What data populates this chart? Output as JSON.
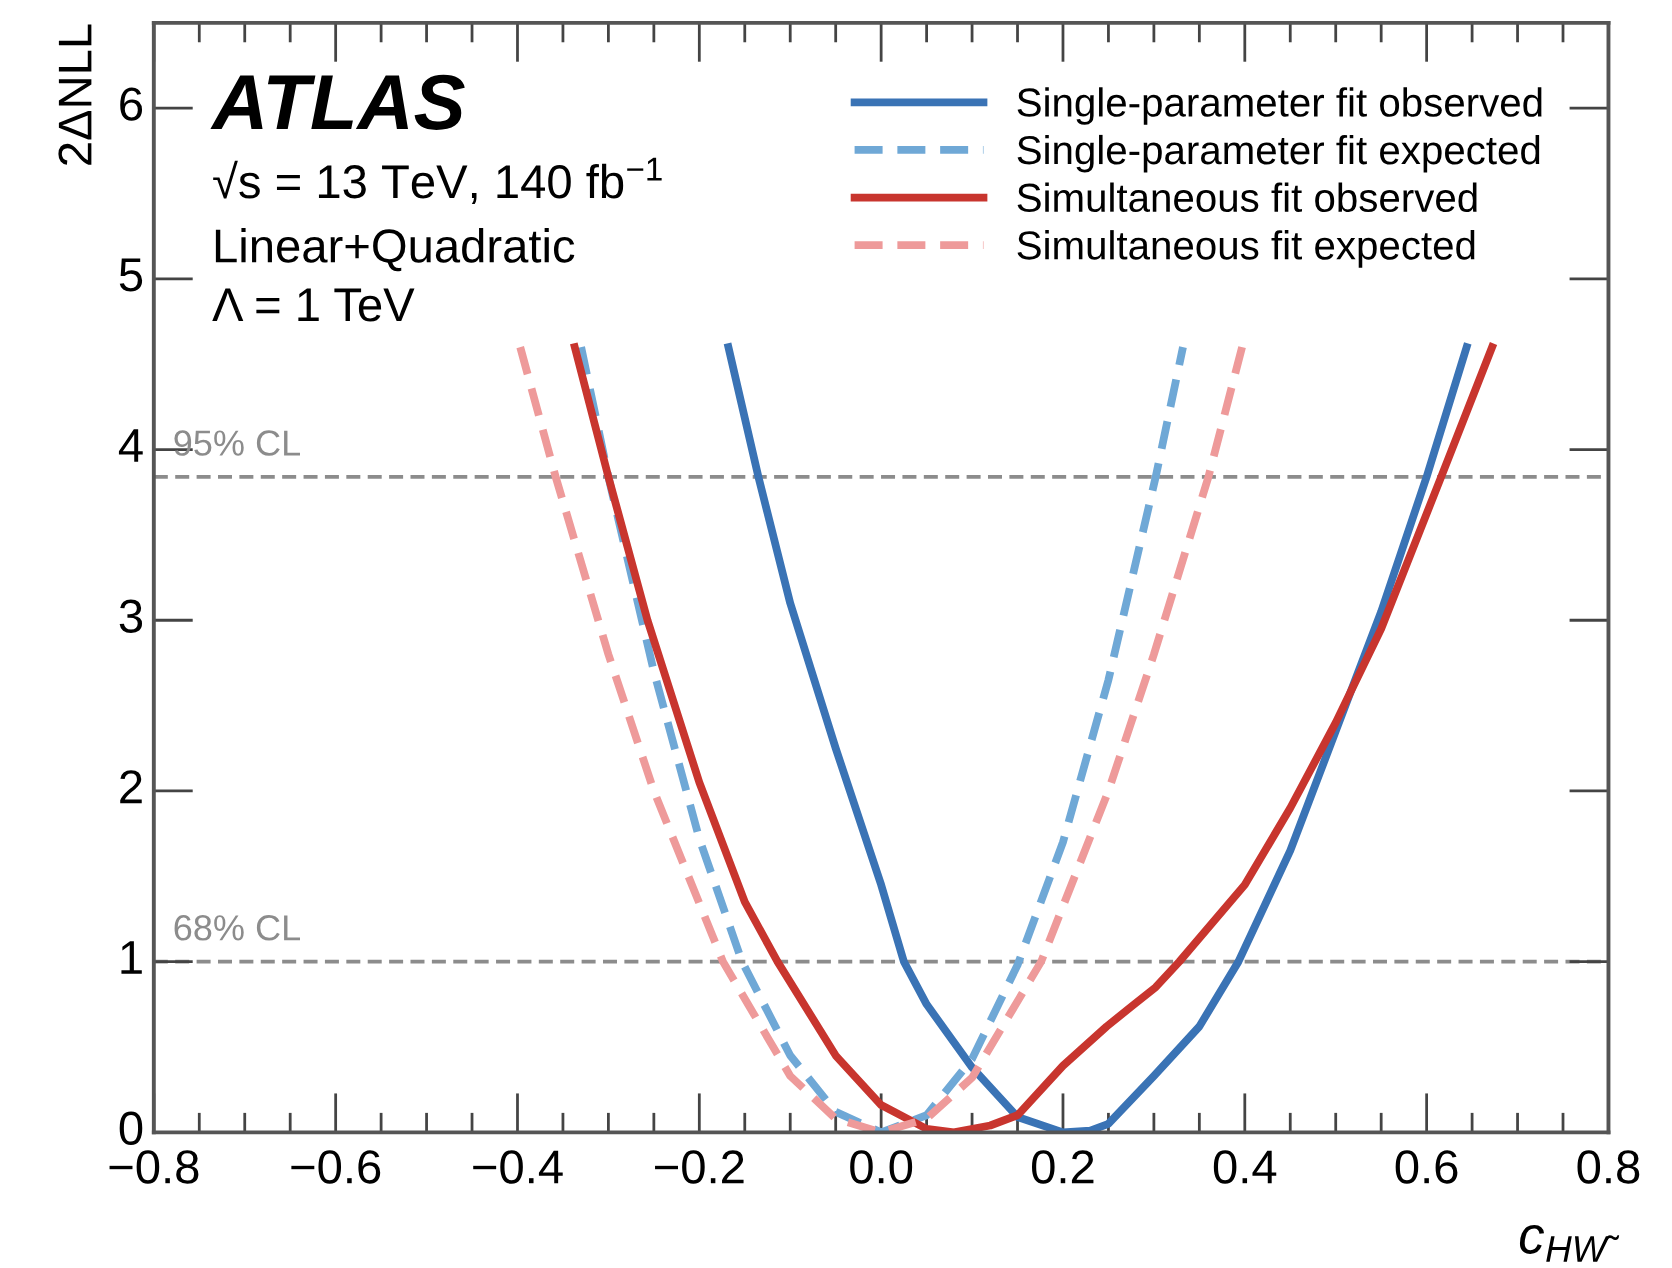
{
  "chart_data": {
    "type": "line",
    "xlabel": "c$_{HW̃}$",
    "ylabel": "2ΔNLL",
    "xlim": [
      -0.8,
      0.8
    ],
    "ylim": [
      0,
      6.5
    ],
    "xticks": [
      {
        "value": -0.8,
        "label": "−0.8"
      },
      {
        "value": -0.6,
        "label": "−0.6"
      },
      {
        "value": -0.4,
        "label": "−0.4"
      },
      {
        "value": -0.2,
        "label": "−0.2"
      },
      {
        "value": 0.0,
        "label": "0.0"
      },
      {
        "value": 0.2,
        "label": "0.2"
      },
      {
        "value": 0.4,
        "label": "0.4"
      },
      {
        "value": 0.6,
        "label": "0.6"
      },
      {
        "value": 0.8,
        "label": "0.8"
      }
    ],
    "yticks": [
      0,
      1,
      2,
      3,
      4,
      5,
      6
    ],
    "grid": false,
    "legend": "top right",
    "marker": "none",
    "annotations": [
      "ATLAS",
      "√s = 13 TeV, 140 fb$^{−1}$",
      "Linear+Quadratic",
      "Λ = 1 TeV"
    ],
    "ref_lines": [
      {
        "axis": "y",
        "value": 3.84,
        "label": "95% CL",
        "color": "#8c8c8c",
        "line_style": "dashed"
      },
      {
        "axis": "y",
        "value": 1,
        "label": "68% CL",
        "color": "#8c8c8c",
        "line_style": "dashed"
      }
    ],
    "series": [
      {
        "name": "Single-parameter fit observed",
        "color": "#3a73b5",
        "line_style": "solid",
        "x": [
          -0.168,
          -0.135,
          -0.1,
          -0.05,
          0.0,
          0.025,
          0.05,
          0.1,
          0.15,
          0.2,
          0.23,
          0.25,
          0.3,
          0.35,
          0.393,
          0.45,
          0.5,
          0.55,
          0.6,
          0.644
        ],
        "values": [
          4.6,
          3.84,
          3.1,
          2.25,
          1.45,
          1.0,
          0.75,
          0.38,
          0.09,
          0.0,
          0.01,
          0.05,
          0.33,
          0.62,
          1.0,
          1.65,
          2.35,
          3.05,
          3.84,
          4.6
        ]
      },
      {
        "name": "Single-parameter fit expected",
        "color": "#6fa8d6",
        "line_style": "dashed",
        "x": [
          -0.33,
          -0.3,
          -0.25,
          -0.2,
          -0.153,
          -0.1,
          -0.05,
          0.0,
          0.05,
          0.1,
          0.15,
          0.2,
          0.25,
          0.302,
          0.332
        ],
        "values": [
          4.6,
          3.84,
          2.7,
          1.72,
          1.0,
          0.45,
          0.12,
          0.0,
          0.1,
          0.43,
          0.98,
          1.7,
          2.65,
          3.84,
          4.6
        ]
      },
      {
        "name": "Simultaneous fit observed",
        "color": "#c8352e",
        "line_style": "solid",
        "x": [
          -0.337,
          -0.3,
          -0.257,
          -0.2,
          -0.15,
          -0.114,
          -0.05,
          0.0,
          0.05,
          0.08,
          0.12,
          0.15,
          0.2,
          0.248,
          0.276,
          0.302,
          0.328,
          0.4,
          0.45,
          0.5,
          0.55,
          0.616,
          0.672
        ],
        "values": [
          4.6,
          3.84,
          3.0,
          2.05,
          1.35,
          1.0,
          0.45,
          0.16,
          0.02,
          0.0,
          0.04,
          0.1,
          0.39,
          0.62,
          0.74,
          0.85,
          1.0,
          1.45,
          1.9,
          2.4,
          2.95,
          3.84,
          4.6
        ]
      },
      {
        "name": "Simultaneous fit expected",
        "color": "#ee9a9a",
        "line_style": "dashed",
        "x": [
          -0.397,
          -0.358,
          -0.3,
          -0.25,
          -0.174,
          -0.1,
          -0.05,
          0.0,
          0.05,
          0.1,
          0.176,
          0.25,
          0.3,
          0.36,
          0.397
        ],
        "values": [
          4.6,
          3.84,
          2.8,
          2.0,
          1.0,
          0.33,
          0.08,
          0.0,
          0.08,
          0.32,
          1.0,
          2.0,
          2.8,
          3.84,
          4.6
        ]
      }
    ]
  }
}
